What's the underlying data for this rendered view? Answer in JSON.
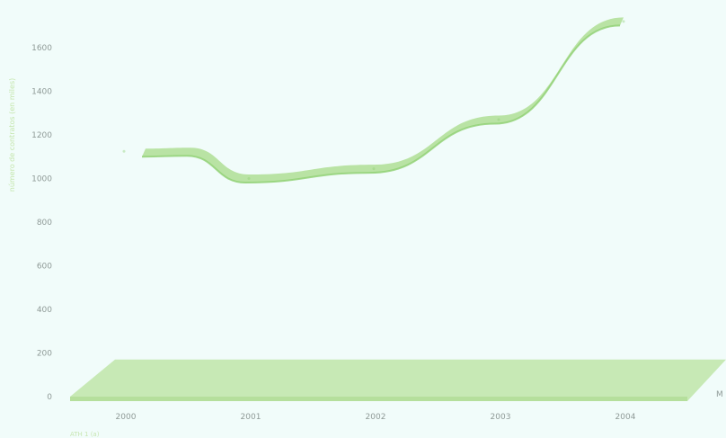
{
  "chart_data": {
    "type": "area",
    "style": "3d-ribbon",
    "title": "",
    "ylabel": "número de contratos (en miles)",
    "xlabel": "",
    "x_axis_end_label": "M",
    "footnote": "ATH 1 (a)",
    "categories": [
      "2000",
      "2001",
      "2002",
      "2003",
      "2004"
    ],
    "yticks": [
      0,
      200,
      400,
      600,
      800,
      1000,
      1200,
      1400,
      1600
    ],
    "ylim": [
      0,
      1650
    ],
    "grid": false,
    "legend": "none",
    "series": [
      {
        "values": [
          1125,
          1000,
          1045,
          1270,
          1720
        ]
      },
      {
        "values": [
          170,
          170,
          170,
          170,
          170
        ]
      }
    ],
    "colors": {
      "background": "#f1fcfa",
      "line_ribbon": "#b2e09a",
      "line_ribbon_dark": "#8ecf72",
      "base_band": "#bfe5a8",
      "base_band_dark": "#a8d98c",
      "tick_text": "#8f9a97",
      "ylabel_text": "#c5e6ad"
    }
  }
}
